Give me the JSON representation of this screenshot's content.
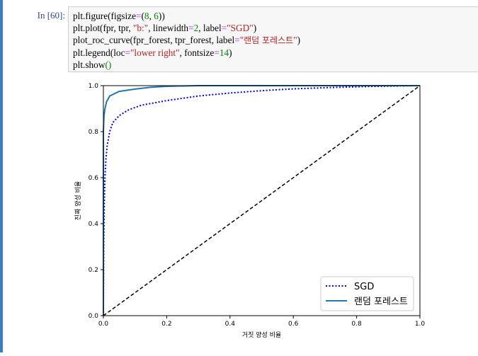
{
  "prompt": "In [60]:",
  "code": {
    "line1": {
      "a": "plt.figure(figsize",
      "op": "=",
      "b": "(",
      "n1": "8",
      "c": ", ",
      "n2": "6",
      "d": "))"
    },
    "line2": {
      "a": "plt.plot(fpr, tpr, ",
      "s1": "\"b:\"",
      "b": ", linewidth",
      "op": "=",
      "n": "2",
      "c": ", label",
      "op2": "=",
      "s2": "\"SGD\"",
      "d": ")"
    },
    "line3": {
      "a": "plot_roc_curve(fpr_forest, tpr_forest, label",
      "op": "=",
      "q1": "\"",
      "ko": "랜덤 포레스트",
      "q2": "\"",
      "b": ")"
    },
    "line4": {
      "a": "plt.legend(loc",
      "op": "=",
      "s": "\"lower right\"",
      "b": ", fontsize",
      "op2": "=",
      "n": "14",
      "c": ")"
    },
    "line5": {
      "a": "plt.show",
      "b": "()"
    }
  },
  "chart_data": {
    "type": "line",
    "xlabel": "거짓 양성 비율",
    "ylabel": "진짜 양성 비율",
    "xlim": [
      0,
      1
    ],
    "ylim": [
      0,
      1
    ],
    "xticks": [
      "0.0",
      "0.2",
      "0.4",
      "0.6",
      "0.8",
      "1.0"
    ],
    "yticks": [
      "0.0",
      "0.2",
      "0.4",
      "0.6",
      "0.8",
      "1.0"
    ],
    "legend_position": "lower-right",
    "series": [
      {
        "name": "SGD",
        "style": "dotted",
        "color": "#0000ff",
        "x": [
          0,
          0.001,
          0.003,
          0.005,
          0.008,
          0.012,
          0.02,
          0.03,
          0.05,
          0.08,
          0.12,
          0.2,
          0.3,
          0.4,
          0.5,
          0.6,
          0.7,
          0.8,
          0.9,
          1.0
        ],
        "y": [
          0,
          0.3,
          0.5,
          0.6,
          0.68,
          0.74,
          0.8,
          0.84,
          0.87,
          0.895,
          0.915,
          0.935,
          0.955,
          0.968,
          0.978,
          0.986,
          0.991,
          0.995,
          0.998,
          1.0
        ]
      },
      {
        "name": "랜덤 포레스트",
        "style": "solid",
        "color": "#1f77b4",
        "x": [
          0,
          0.0,
          0.002,
          0.005,
          0.01,
          0.02,
          0.05,
          0.1,
          0.15,
          0.2,
          0.3,
          1.0
        ],
        "y": [
          0,
          0.8,
          0.87,
          0.9,
          0.93,
          0.955,
          0.975,
          0.985,
          0.993,
          0.997,
          1.0,
          1.0
        ]
      },
      {
        "name": "diagonal",
        "style": "dashed",
        "color": "#000000",
        "x": [
          0,
          1
        ],
        "y": [
          0,
          1
        ]
      }
    ]
  }
}
